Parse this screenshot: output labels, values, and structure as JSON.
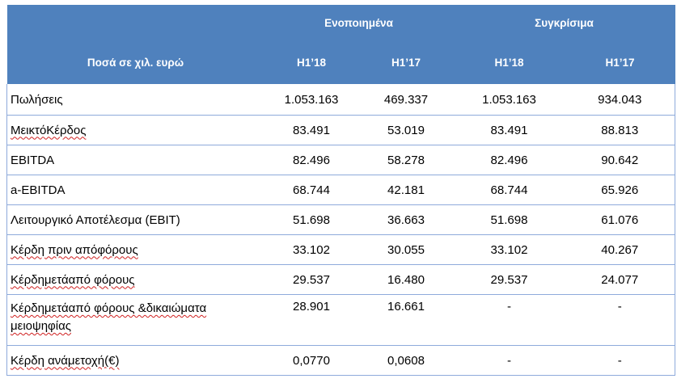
{
  "header": {
    "label_col": "Ποσά  σε χιλ. ευρώ",
    "groups": [
      "Ενοποιημένα",
      "Συγκρίσιμα"
    ],
    "periods": [
      "H1’18",
      "H1’17",
      "H1’18",
      "H1’17"
    ]
  },
  "rows": [
    {
      "label": "Πωλήσεις",
      "values": [
        "1.053.163",
        "469.337",
        "1.053.163",
        "934.043"
      ]
    },
    {
      "label": "ΜεικτόΚέρδος",
      "values": [
        "83.491",
        "53.019",
        "83.491",
        "88.813"
      ]
    },
    {
      "label": "EBITDA",
      "values": [
        "82.496",
        "58.278",
        "82.496",
        "90.642"
      ]
    },
    {
      "label": "a-EBITDA",
      "values": [
        "68.744",
        "42.181",
        "68.744",
        "65.926"
      ]
    },
    {
      "label": "Λειτουργικό Αποτέλεσμα (EBIT)",
      "values": [
        "51.698",
        "36.663",
        "51.698",
        "61.076"
      ]
    },
    {
      "label": "Κέρδη πριν απόφόρους",
      "values": [
        "33.102",
        "30.055",
        "33.102",
        "40.267"
      ]
    },
    {
      "label": "Κέρδημετάαπό φόρους",
      "values": [
        "29.537",
        "16.480",
        "29.537",
        "24.077"
      ]
    },
    {
      "label": "Κέρδημετάαπό φόρους &δικαιώματα μειοψηφίας",
      "values": [
        "28.901",
        "16.661",
        "-",
        "-"
      ]
    },
    {
      "label": "Κέρδη ανάμετοχή(€)",
      "values": [
        "0,0770",
        "0,0608",
        "-",
        "-"
      ]
    }
  ],
  "colors": {
    "header_bg": "#4f81bd",
    "header_text": "#ffffff",
    "row_border": "#8eaadb",
    "spell_underline": "#d02020"
  }
}
